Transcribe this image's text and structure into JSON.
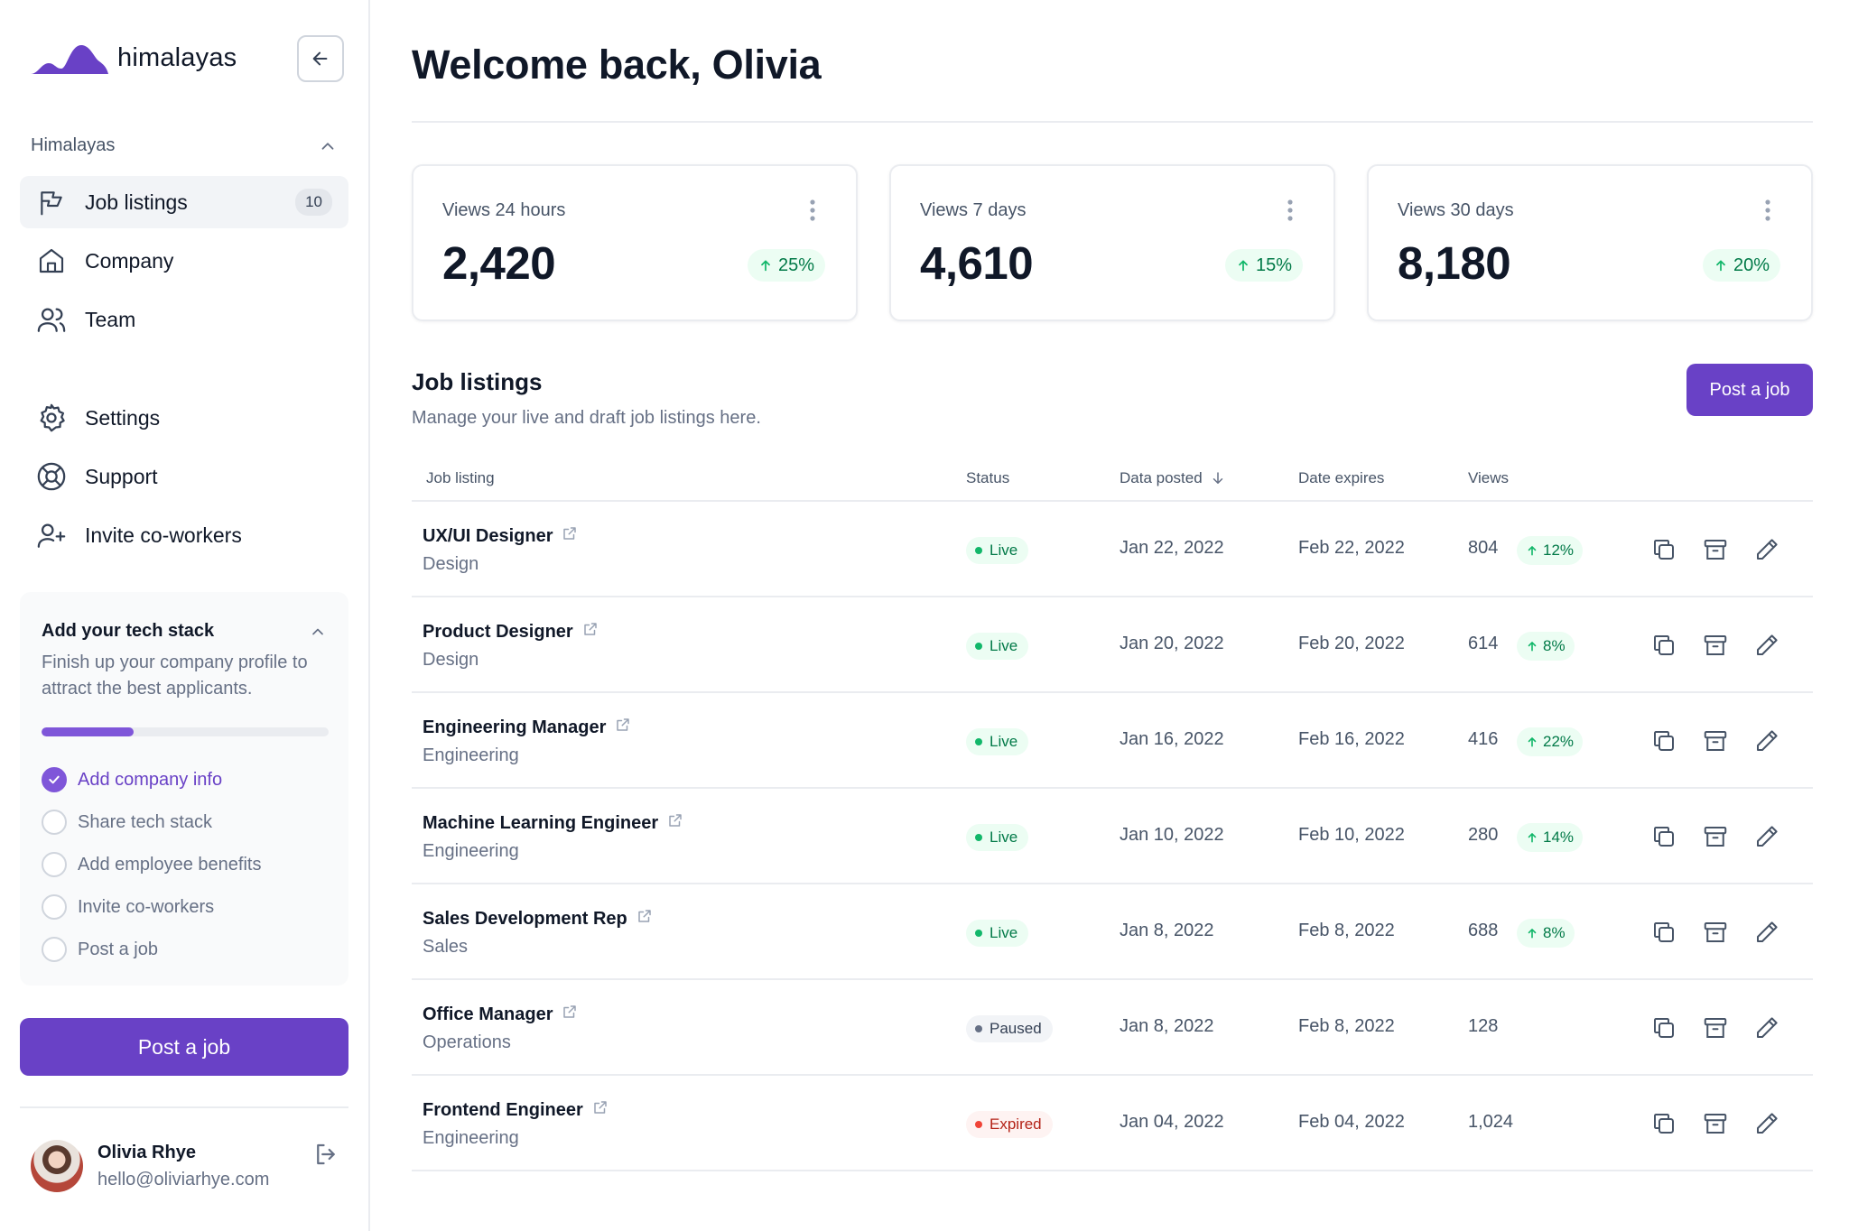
{
  "app": {
    "brand": "himalayas"
  },
  "sidebar": {
    "section_title": "Himalayas",
    "nav": [
      {
        "label": "Job listings",
        "badge": "10",
        "icon": "flag-icon",
        "active": true
      },
      {
        "label": "Company",
        "icon": "home-icon"
      },
      {
        "label": "Team",
        "icon": "users-icon"
      },
      {
        "label": "Settings",
        "icon": "gear-icon"
      },
      {
        "label": "Support",
        "icon": "lifebuoy-icon"
      },
      {
        "label": "Invite co-workers",
        "icon": "user-plus-icon"
      }
    ],
    "tech_stack": {
      "title": "Add your tech stack",
      "description": "Finish up your company profile to attract the best applicants.",
      "progress": 0.32,
      "checklist": [
        {
          "label": "Add company info",
          "done": true
        },
        {
          "label": "Share tech stack",
          "done": false
        },
        {
          "label": "Add employee benefits",
          "done": false
        },
        {
          "label": "Invite co-workers",
          "done": false
        },
        {
          "label": "Post a job",
          "done": false
        }
      ]
    },
    "post_job_label": "Post a job",
    "user": {
      "name": "Olivia Rhye",
      "email": "hello@oliviarhye.com"
    }
  },
  "main": {
    "title": "Welcome back, Olivia",
    "stats": [
      {
        "label": "Views 24 hours",
        "value": "2,420",
        "trend": "25%"
      },
      {
        "label": "Views 7 days",
        "value": "4,610",
        "trend": "15%"
      },
      {
        "label": "Views 30 days",
        "value": "8,180",
        "trend": "20%"
      }
    ],
    "listings": {
      "title": "Job listings",
      "subtitle": "Manage your live and draft job listings here.",
      "post_button": "Post a job",
      "columns": {
        "listing": "Job listing",
        "status": "Status",
        "posted": "Data posted",
        "expires": "Date expires",
        "views": "Views"
      },
      "rows": [
        {
          "title": "UX/UI Designer",
          "dept": "Design",
          "status": "Live",
          "posted": "Jan 22, 2022",
          "expires": "Feb 22, 2022",
          "views": "804",
          "trend": "12%"
        },
        {
          "title": "Product Designer",
          "dept": "Design",
          "status": "Live",
          "posted": "Jan 20, 2022",
          "expires": "Feb 20, 2022",
          "views": "614",
          "trend": "8%"
        },
        {
          "title": "Engineering Manager",
          "dept": "Engineering",
          "status": "Live",
          "posted": "Jan 16, 2022",
          "expires": "Feb 16, 2022",
          "views": "416",
          "trend": "22%"
        },
        {
          "title": "Machine Learning Engineer",
          "dept": "Engineering",
          "status": "Live",
          "posted": "Jan 10, 2022",
          "expires": "Feb 10, 2022",
          "views": "280",
          "trend": "14%"
        },
        {
          "title": "Sales Development Rep",
          "dept": "Sales",
          "status": "Live",
          "posted": "Jan 8, 2022",
          "expires": "Feb 8, 2022",
          "views": "688",
          "trend": "8%"
        },
        {
          "title": "Office Manager",
          "dept": "Operations",
          "status": "Paused",
          "posted": "Jan 8, 2022",
          "expires": "Feb 8, 2022",
          "views": "128",
          "trend": ""
        },
        {
          "title": "Frontend Engineer",
          "dept": "Engineering",
          "status": "Expired",
          "posted": "Jan 04, 2022",
          "expires": "Feb 04, 2022",
          "views": "1,024",
          "trend": ""
        }
      ]
    }
  },
  "colors": {
    "primary": "#6941c6",
    "live_bg": "#ecfdf3",
    "live_fg": "#027a48",
    "paused_bg": "#f2f4f7",
    "paused_fg": "#344054",
    "expired_bg": "#fef3f2",
    "expired_fg": "#b42318"
  }
}
